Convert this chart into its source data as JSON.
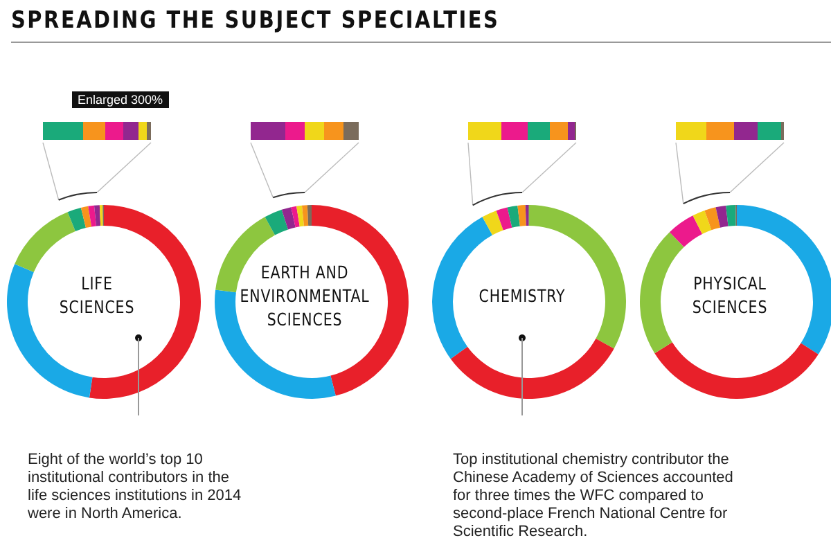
{
  "chart_data": [
    {
      "type": "donut",
      "title": "SPREADING THE SUBJECT SPECIALTIES",
      "subtitle": "LIFE SCIENCES",
      "categories": [
        null,
        null,
        null,
        null,
        null,
        null,
        null,
        null,
        null
      ],
      "values": [
        52.4,
        29,
        12.5,
        2.3,
        1.2,
        1,
        0.9,
        0.5,
        0.2
      ],
      "colors": [
        "#e8202a",
        "#1aa9e6",
        "#8dc63f",
        "#1aaa7a",
        "#f7941d",
        "#ec1a8c",
        "#92278f",
        "#f0d71a",
        "#7b6c5c"
      ],
      "annotations": [
        "Enlarged 300%",
        "Eight of the world’s top 10 institutional contributors in the life sciences institutions in 2014 were in North America."
      ]
    },
    {
      "type": "donut",
      "subtitle": "EARTH AND ENVIRONMENTAL SCIENCES",
      "categories": [
        null,
        null,
        null,
        null,
        null,
        null,
        null,
        null,
        null
      ],
      "values": [
        46,
        31,
        15,
        3,
        1.6,
        0.9,
        0.9,
        0.9,
        0.7
      ],
      "colors": [
        "#e8202a",
        "#1aa9e6",
        "#8dc63f",
        "#1aaa7a",
        "#92278f",
        "#ec1a8c",
        "#f0d71a",
        "#f7941d",
        "#7b6c5c"
      ]
    },
    {
      "type": "donut",
      "subtitle": "CHEMISTRY",
      "categories": [
        null,
        null,
        null,
        null,
        null,
        null,
        null,
        null,
        null
      ],
      "values": [
        33,
        32,
        27,
        2.5,
        1.9,
        1.7,
        1.3,
        0.5,
        0.1
      ],
      "colors": [
        "#8dc63f",
        "#e8202a",
        "#1aa9e6",
        "#f0d71a",
        "#ec1a8c",
        "#1aaa7a",
        "#f7941d",
        "#92278f",
        "#7b6c5c"
      ],
      "annotations": [
        "Top institutional chemistry contributor the Chinese Academy of Sciences accounted for three times the WFC compared to second-place French National Centre for Scientific Research."
      ]
    },
    {
      "type": "donut",
      "subtitle": "PHYSICAL SCIENCES",
      "categories": [
        null,
        null,
        null,
        null,
        null,
        null,
        null,
        null,
        null
      ],
      "values": [
        34.1,
        32,
        21.7,
        4.7,
        2.1,
        1.9,
        1.7,
        1.6,
        0.2
      ],
      "colors": [
        "#1aa9e6",
        "#e8202a",
        "#8dc63f",
        "#ec1a8c",
        "#f0d71a",
        "#f7941d",
        "#92278f",
        "#1aaa7a",
        "#7b6c5c"
      ]
    }
  ]
}
